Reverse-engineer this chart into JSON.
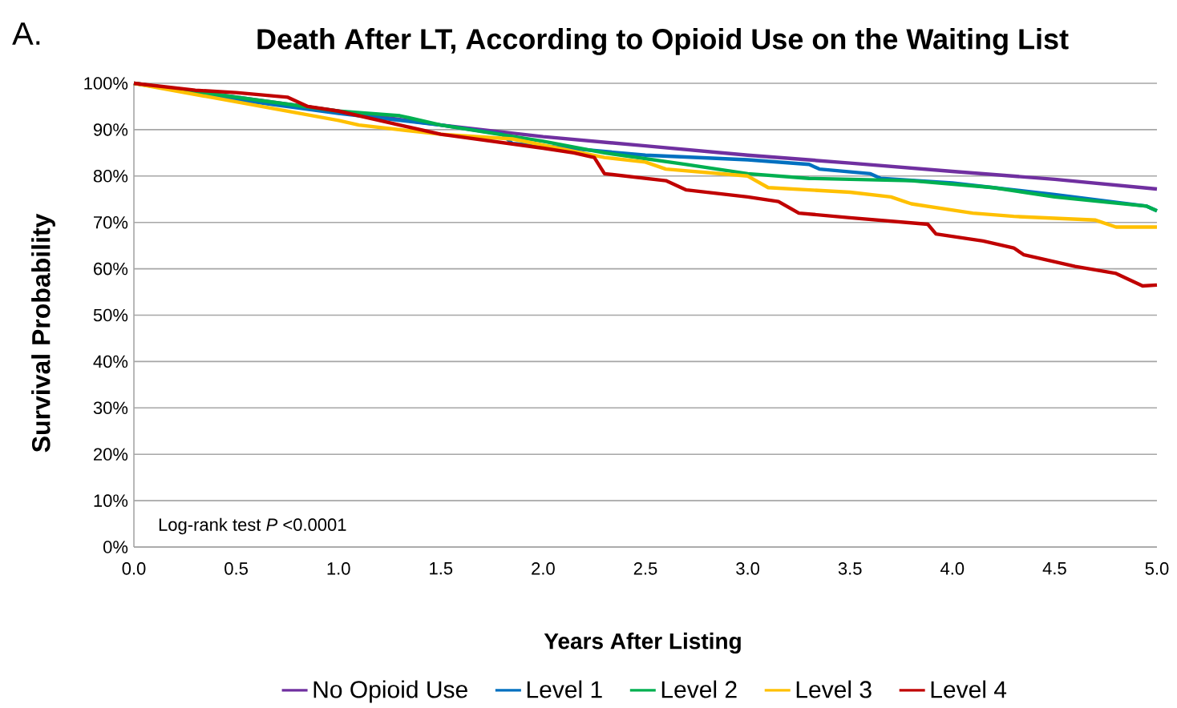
{
  "chart_data": {
    "type": "line",
    "title": "Death After LT, According to Opioid Use on the Waiting List",
    "xlabel": "Years After Listing",
    "ylabel": "Survival Probability",
    "annotations": [
      "A.",
      "Log-rank test *P* <0.0001"
    ],
    "xlim": [
      0,
      5
    ],
    "ylim": [
      0,
      100
    ],
    "xticks": [
      {
        "value": 0,
        "label": "0.0"
      },
      {
        "value": 0.5,
        "label": "0.5"
      },
      {
        "value": 1,
        "label": "1.0"
      },
      {
        "value": 1.5,
        "label": "1.5"
      },
      {
        "value": 2,
        "label": "2.0"
      },
      {
        "value": 2.5,
        "label": "2.5"
      },
      {
        "value": 3,
        "label": "3.0"
      },
      {
        "value": 3.5,
        "label": "3.5"
      },
      {
        "value": 4,
        "label": "4.0"
      },
      {
        "value": 4.5,
        "label": "4.5"
      },
      {
        "value": 5,
        "label": "5.0"
      }
    ],
    "yticks": [
      {
        "value": 0,
        "label": "0%"
      },
      {
        "value": 10,
        "label": "10%"
      },
      {
        "value": 20,
        "label": "20%"
      },
      {
        "value": 30,
        "label": "30%"
      },
      {
        "value": 40,
        "label": "40%"
      },
      {
        "value": 50,
        "label": "50%"
      },
      {
        "value": 60,
        "label": "60%"
      },
      {
        "value": 70,
        "label": "70%"
      },
      {
        "value": 80,
        "label": "80%"
      },
      {
        "value": 90,
        "label": "90%"
      },
      {
        "value": 100,
        "label": "100%"
      }
    ],
    "grid": "y",
    "legend": "bottom",
    "marker": "none",
    "line_style": "solid",
    "series": [
      {
        "name": "No Opioid Use",
        "color": "#7030a0",
        "x": [
          0,
          0.5,
          1.0,
          1.5,
          2.0,
          2.5,
          3.0,
          3.5,
          4.0,
          4.5,
          5.0
        ],
        "values": [
          100,
          97,
          94,
          91,
          88.5,
          86.5,
          84.5,
          82.8,
          81,
          79.3,
          77.2
        ]
      },
      {
        "name": "Level 1",
        "color": "#0070c0",
        "x": [
          0,
          0.5,
          1.0,
          1.5,
          1.8,
          1.85,
          2.0,
          2.5,
          3.0,
          3.3,
          3.35,
          3.6,
          3.65,
          4.0,
          4.5,
          4.95,
          5.0
        ],
        "values": [
          100,
          96.5,
          93.5,
          91,
          89,
          87,
          86.5,
          84.5,
          83.5,
          82.5,
          81.5,
          80.5,
          79.5,
          78.5,
          76,
          73.5,
          72.5
        ]
      },
      {
        "name": "Level 2",
        "color": "#00b050",
        "x": [
          0,
          0.5,
          1.0,
          1.3,
          1.5,
          2.0,
          2.3,
          2.7,
          3.0,
          3.3,
          3.8,
          4.2,
          4.5,
          4.95,
          5.0
        ],
        "values": [
          100,
          97,
          94,
          93,
          91,
          87.5,
          85,
          82.5,
          80.5,
          79.5,
          79,
          77.5,
          75.5,
          73.5,
          72.5
        ]
      },
      {
        "name": "Level 3",
        "color": "#ffc000",
        "x": [
          0,
          0.5,
          1.0,
          1.1,
          1.5,
          1.85,
          2.3,
          2.5,
          2.6,
          3.0,
          3.1,
          3.5,
          3.7,
          3.8,
          4.1,
          4.3,
          4.7,
          4.8,
          5.0
        ],
        "values": [
          100,
          96,
          92,
          91,
          89,
          88,
          84,
          83,
          81.5,
          80,
          77.5,
          76.5,
          75.5,
          74,
          72,
          71.3,
          70.5,
          69,
          69
        ]
      },
      {
        "name": "Level 4",
        "color": "#c00000",
        "x": [
          0,
          0.3,
          0.5,
          0.75,
          0.85,
          1.0,
          1.2,
          1.4,
          1.5,
          2.0,
          2.15,
          2.25,
          2.3,
          2.6,
          2.7,
          3.0,
          3.15,
          3.25,
          3.5,
          3.88,
          3.92,
          4.15,
          4.3,
          4.35,
          4.6,
          4.8,
          4.93,
          5.0
        ],
        "values": [
          100,
          98.5,
          98,
          97,
          95,
          94,
          92,
          90,
          89,
          86,
          85,
          84,
          80.5,
          79,
          77,
          75.5,
          74.5,
          72,
          71,
          69.6,
          67.5,
          66,
          64.5,
          63,
          60.5,
          59,
          56.3,
          56.5
        ]
      }
    ]
  }
}
